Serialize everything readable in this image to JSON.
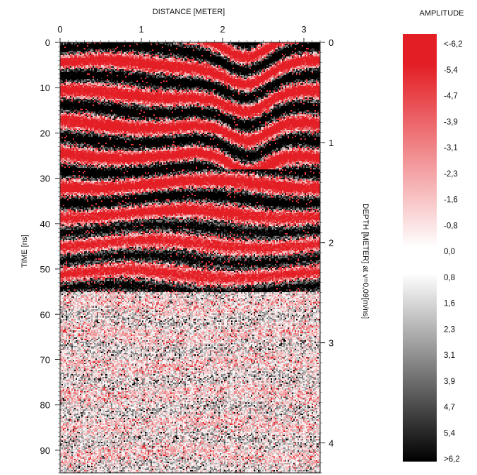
{
  "chart_data": {
    "type": "heatmap",
    "title": "",
    "xlabel": "DISTANCE [METER]",
    "ylabel": "TIME [ns]",
    "y2label": "DEPTH [METER] at v=0,09[m/ns]",
    "x_range": [
      0,
      3.2
    ],
    "y_range": [
      0,
      95
    ],
    "y2_range": [
      0,
      4.3
    ],
    "x_ticks": [
      "0",
      "1",
      "2",
      "3"
    ],
    "y_ticks": [
      "0",
      "10",
      "20",
      "30",
      "40",
      "50",
      "60",
      "70",
      "80",
      "90"
    ],
    "y2_ticks": [
      "0",
      "1",
      "2",
      "3",
      "4"
    ],
    "colorbar": {
      "title": "AMPLITUDE",
      "labels": [
        "<-6,2",
        "-5,4",
        "-4,7",
        "-3,9",
        "-3,1",
        "-2,3",
        "-1,6",
        "-0,8",
        "0,0",
        "0,8",
        "1,6",
        "2,3",
        "3,1",
        "3,9",
        "4,7",
        "5,4",
        ">6,2"
      ],
      "color_low": "#e31e24",
      "color_mid": "#ffffff",
      "color_high": "#000000"
    },
    "description_of_field": "GPR radargram: strong red/black banded reflections from 0 to ~55 ns (dipping reflectors near 2-2.5 m, 5-20 ns); weaker mostly white/grey noisy signal below ~55 ns"
  }
}
